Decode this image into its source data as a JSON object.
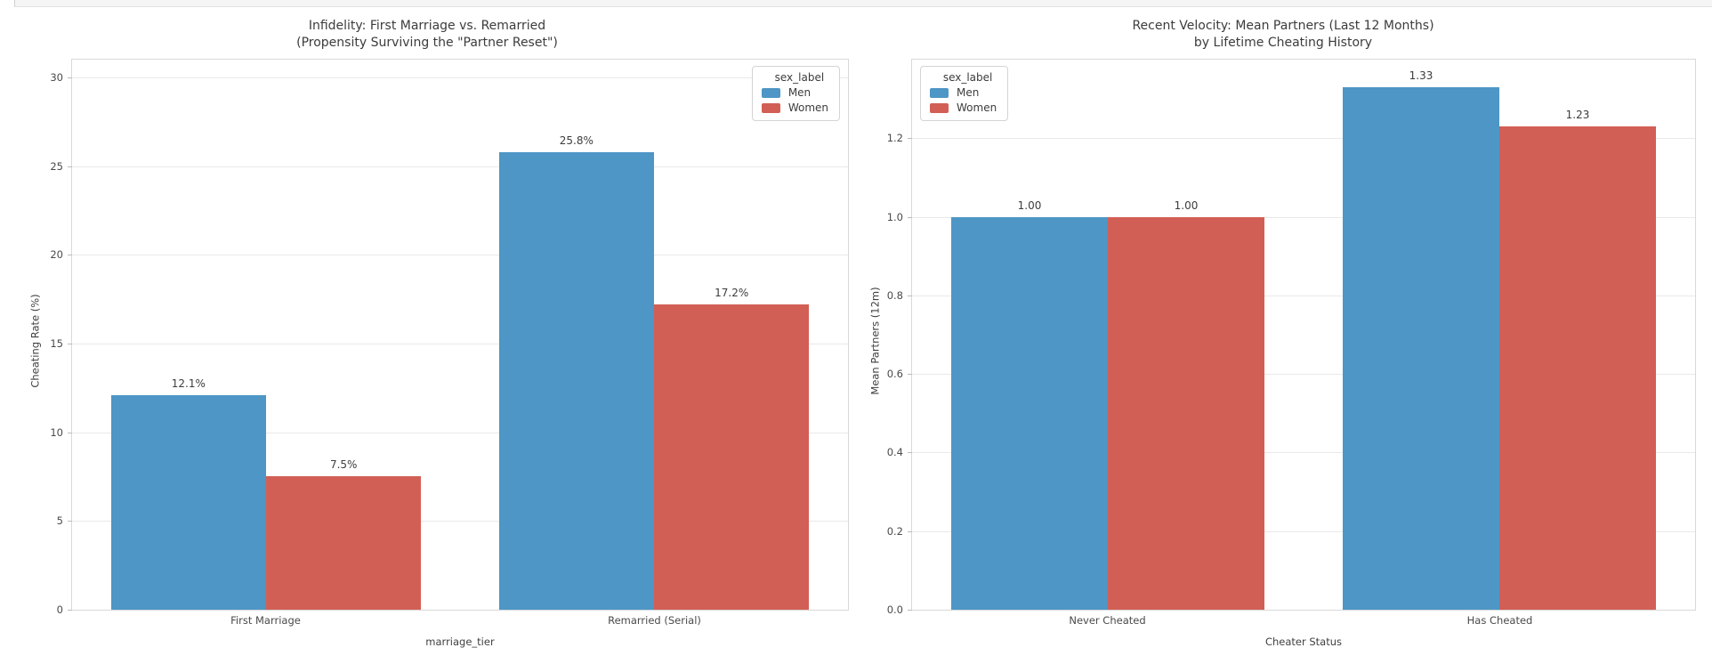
{
  "colors": {
    "men": "#4d96c5",
    "women": "#d25f55",
    "grid": "#e9e9e9",
    "spine": "#d9d9d9"
  },
  "chart_data": [
    {
      "type": "bar",
      "title_lines": [
        "Infidelity: First Marriage vs. Remarried",
        "(Propensity Surviving the \"Partner Reset\")"
      ],
      "categories": [
        "First Marriage",
        "Remarried (Serial)"
      ],
      "series": [
        {
          "name": "Men",
          "color_key": "men",
          "values": [
            12.1,
            25.8
          ],
          "labels": [
            "12.1%",
            "25.8%"
          ]
        },
        {
          "name": "Women",
          "color_key": "women",
          "values": [
            7.5,
            17.2
          ],
          "labels": [
            "7.5%",
            "17.2%"
          ]
        }
      ],
      "xlabel": "marriage_tier",
      "ylabel": "Cheating Rate (%)",
      "ylim": [
        0,
        31
      ],
      "yticks": [
        0,
        5,
        10,
        15,
        20,
        25,
        30
      ],
      "ytick_labels": [
        "0",
        "5",
        "10",
        "15",
        "20",
        "25",
        "30"
      ],
      "grid": true,
      "legend": {
        "title": "sex_label",
        "entries": [
          "Men",
          "Women"
        ],
        "position": "top-right"
      }
    },
    {
      "type": "bar",
      "title_lines": [
        "Recent Velocity: Mean Partners (Last 12 Months)",
        "by Lifetime Cheating History"
      ],
      "categories": [
        "Never Cheated",
        "Has Cheated"
      ],
      "series": [
        {
          "name": "Men",
          "color_key": "men",
          "values": [
            1.0,
            1.33
          ],
          "labels": [
            "1.00",
            "1.33"
          ]
        },
        {
          "name": "Women",
          "color_key": "women",
          "values": [
            1.0,
            1.23
          ],
          "labels": [
            "1.00",
            "1.23"
          ]
        }
      ],
      "xlabel": "Cheater Status",
      "ylabel": "Mean Partners (12m)",
      "ylim": [
        0,
        1.4
      ],
      "yticks": [
        0.0,
        0.2,
        0.4,
        0.6,
        0.8,
        1.0,
        1.2
      ],
      "ytick_labels": [
        "0.0",
        "0.2",
        "0.4",
        "0.6",
        "0.8",
        "1.0",
        "1.2"
      ],
      "grid": true,
      "legend": {
        "title": "sex_label",
        "entries": [
          "Men",
          "Women"
        ],
        "position": "top-left"
      }
    }
  ]
}
